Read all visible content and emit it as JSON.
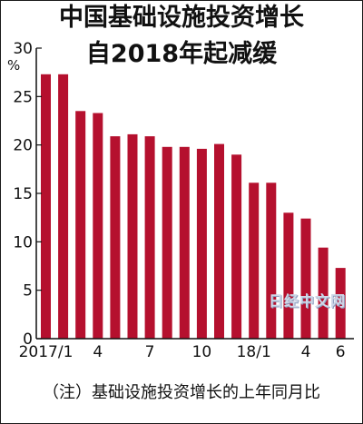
{
  "title_line1": "中国基础设施投资增长",
  "title_line2": "自2018年起减缓",
  "unit": "%",
  "note": "（注）基础设施投资增长的上年同月比",
  "watermark": "日经中文网",
  "colors": {
    "bar": "#b5102e",
    "axis": "#111111",
    "text": "#111111"
  },
  "chart_data": {
    "type": "bar",
    "title": "中国基础设施投资增长 自2018年起减缓",
    "ylabel": "%",
    "ylim": [
      0,
      30
    ],
    "yticks": [
      0,
      5,
      10,
      15,
      20,
      25,
      30
    ],
    "categories": [
      "2017/1",
      "2017/2",
      "2017/3",
      "2017/4",
      "2017/5",
      "2017/6",
      "2017/7",
      "2017/8",
      "2017/9",
      "2017/10",
      "2017/11",
      "2017/12",
      "18/1",
      "18/2",
      "18/3",
      "18/4",
      "18/5",
      "18/6"
    ],
    "values": [
      27.3,
      27.3,
      23.5,
      23.3,
      20.9,
      21.1,
      20.9,
      19.8,
      19.8,
      19.6,
      20.1,
      19.0,
      16.1,
      16.1,
      13.0,
      12.4,
      9.4,
      7.3
    ],
    "x_tick_labels": [
      {
        "index": 0,
        "label": "2017/1"
      },
      {
        "index": 3,
        "label": "4"
      },
      {
        "index": 6,
        "label": "7"
      },
      {
        "index": 9,
        "label": "10"
      },
      {
        "index": 12,
        "label": "18/1"
      },
      {
        "index": 15,
        "label": "4"
      },
      {
        "index": 17,
        "label": "6"
      }
    ],
    "grid": false,
    "legend": "none"
  }
}
